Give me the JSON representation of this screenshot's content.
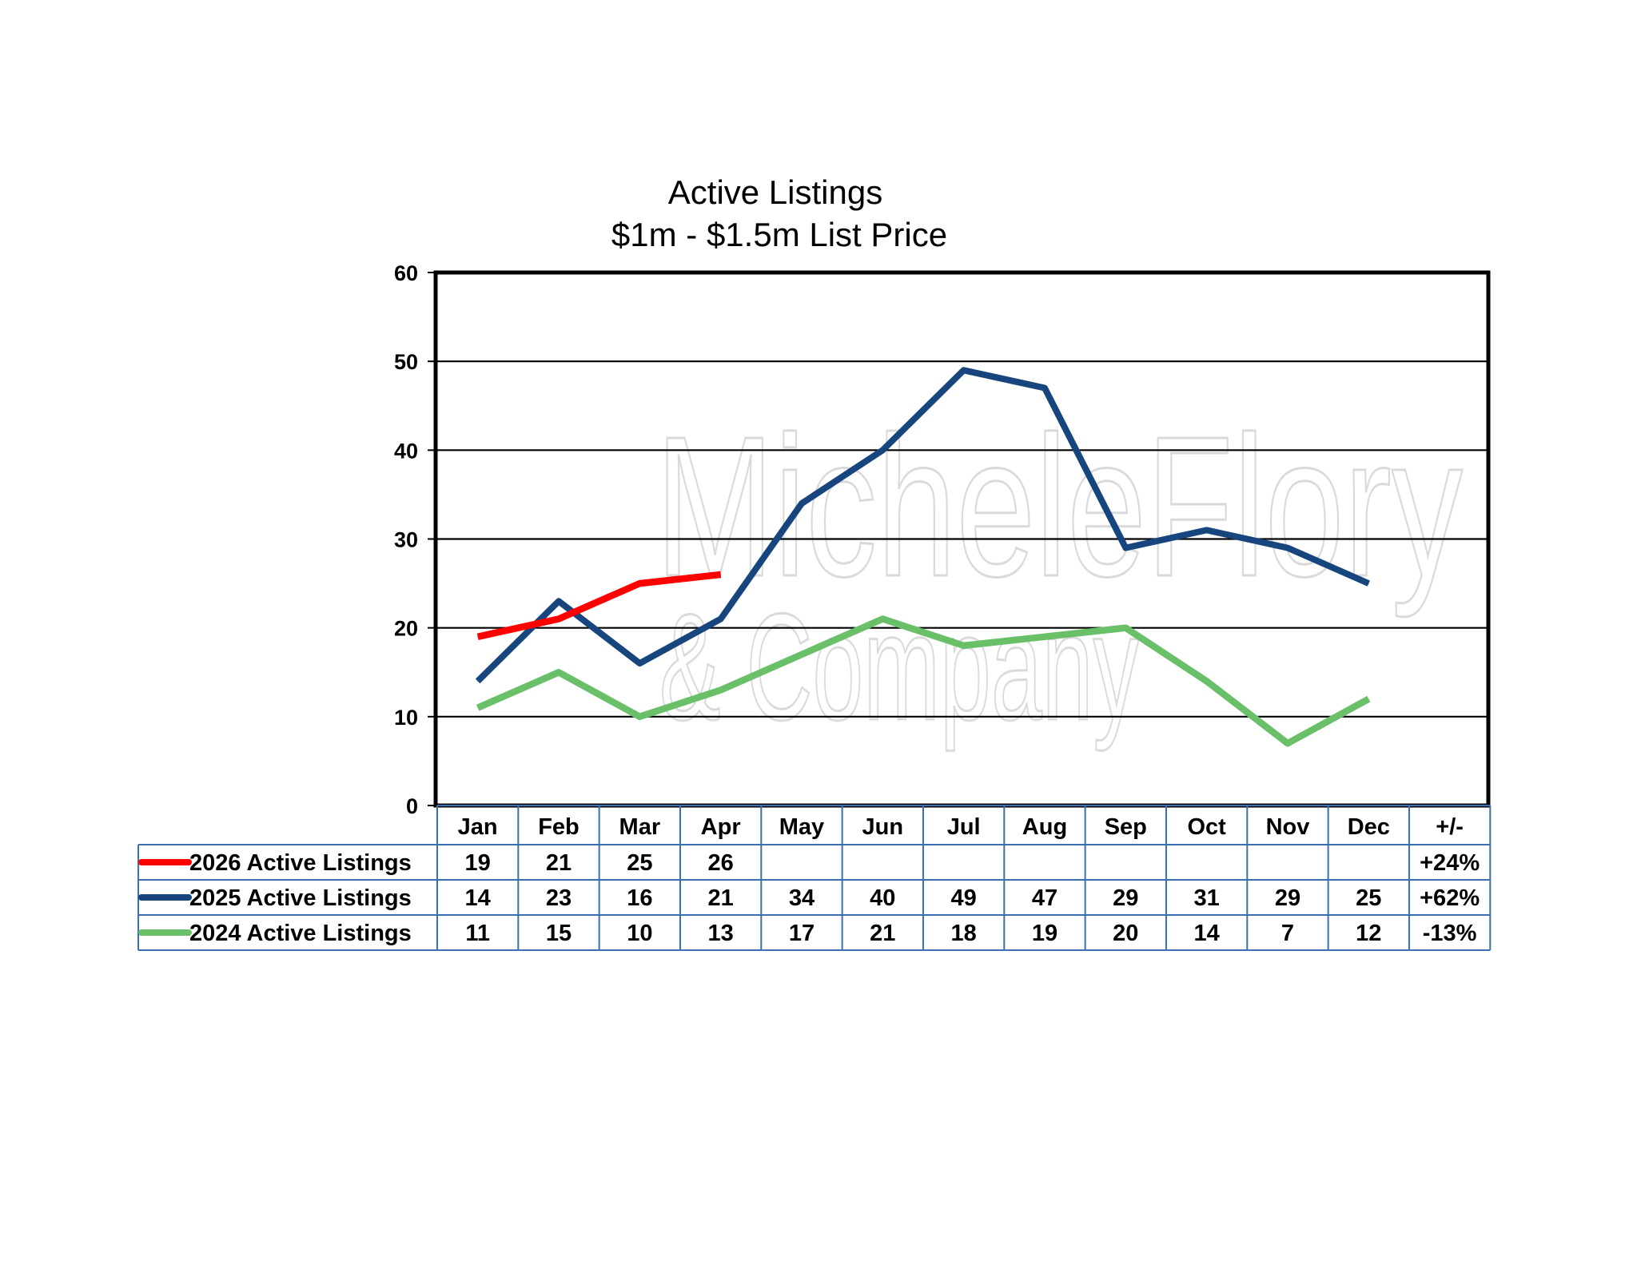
{
  "chart_data": {
    "type": "line",
    "title": "Active Listings",
    "subtitle": "$1m - $1.5m List Price",
    "categories": [
      "Jan",
      "Feb",
      "Mar",
      "Apr",
      "May",
      "Jun",
      "Jul",
      "Aug",
      "Sep",
      "Oct",
      "Nov",
      "Dec"
    ],
    "ylim": [
      0,
      60
    ],
    "yticks": [
      0,
      10,
      20,
      30,
      40,
      50,
      60
    ],
    "grid": true,
    "legend": "table-below",
    "change_header": "+/-",
    "series": [
      {
        "name": "2026 Active Listings",
        "color": "#ff0000",
        "values": [
          19,
          21,
          25,
          26,
          null,
          null,
          null,
          null,
          null,
          null,
          null,
          null
        ],
        "change": "+24%"
      },
      {
        "name": "2025 Active Listings",
        "color": "#17467f",
        "values": [
          14,
          23,
          16,
          21,
          34,
          40,
          49,
          47,
          29,
          31,
          29,
          25
        ],
        "change": "+62%"
      },
      {
        "name": "2024 Active Listings",
        "color": "#6abf69",
        "values": [
          11,
          15,
          10,
          13,
          17,
          21,
          18,
          19,
          20,
          14,
          7,
          12
        ],
        "change": "-13%"
      }
    ]
  },
  "watermark": {
    "line1": "MicheleFlory",
    "line2": "& Company"
  }
}
